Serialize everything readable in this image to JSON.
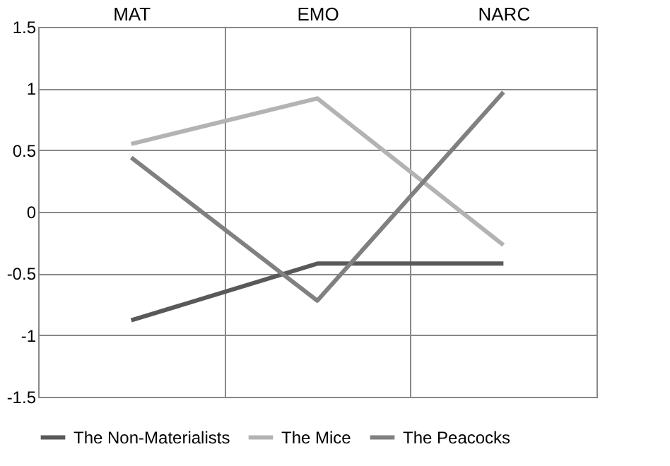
{
  "chart_data": {
    "type": "line",
    "categories": [
      "MAT",
      "EMO",
      "NARC"
    ],
    "series": [
      {
        "name": "The Non-Materialists",
        "color": "#595959",
        "values": [
          -0.88,
          -0.42,
          -0.42
        ]
      },
      {
        "name": "The Mice",
        "color": "#b3b3b3",
        "values": [
          0.55,
          0.92,
          -0.27
        ]
      },
      {
        "name": "The Peacocks",
        "color": "#808080",
        "values": [
          0.44,
          -0.72,
          0.97
        ]
      }
    ],
    "ylim": [
      -1.5,
      1.5
    ],
    "yticks": [
      -1.5,
      -1,
      -0.5,
      0,
      0.5,
      1,
      1.5
    ],
    "grid": true,
    "legend": "bottom",
    "marker": "none",
    "line_style": "solid"
  }
}
